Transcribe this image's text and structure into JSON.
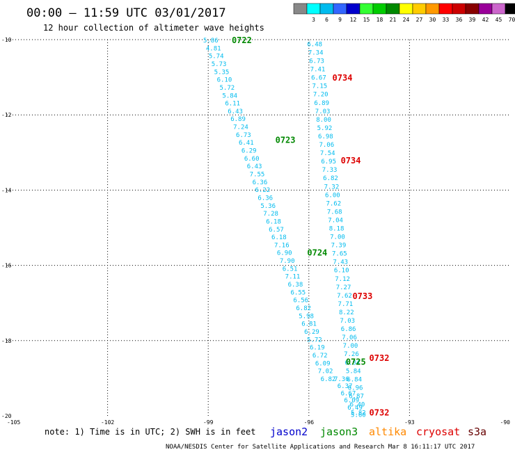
{
  "title": "00:00 – 11:59 UTC 03/01/2017",
  "subtitle": "12 hour collection of altimeter wave heights",
  "note": "note: 1) Time is in UTC; 2) SWH is in feet",
  "credit": "NOAA/NESDIS Center for Satellite Applications and Research   Mar  8 16:11:17 UTC 2017",
  "satellites": [
    {
      "name": "jason2",
      "color": "#0000cc"
    },
    {
      "name": "jason3",
      "color": "#008800"
    },
    {
      "name": "altika",
      "color": "#ff8800"
    },
    {
      "name": "cryosat",
      "color": "#dd0000"
    },
    {
      "name": "s3a",
      "color": "#660000"
    }
  ],
  "color_legend": {
    "unit": "(ft)",
    "bins": [
      {
        "label": "",
        "color": "#888888"
      },
      {
        "label": "3",
        "color": "#00ffff"
      },
      {
        "label": "6",
        "color": "#00bbee"
      },
      {
        "label": "9",
        "color": "#3366ff"
      },
      {
        "label": "12",
        "color": "#0000cc"
      },
      {
        "label": "15",
        "color": "#33ff33"
      },
      {
        "label": "18",
        "color": "#00cc00"
      },
      {
        "label": "21",
        "color": "#008800"
      },
      {
        "label": "24",
        "color": "#ffff00"
      },
      {
        "label": "27",
        "color": "#ffcc00"
      },
      {
        "label": "30",
        "color": "#ff9900"
      },
      {
        "label": "33",
        "color": "#ff0000"
      },
      {
        "label": "36",
        "color": "#cc0000"
      },
      {
        "label": "39",
        "color": "#880000"
      },
      {
        "label": "42",
        "color": "#990099"
      },
      {
        "label": "45",
        "color": "#cc66cc"
      },
      {
        "label": "70",
        "color": "#000000"
      }
    ]
  },
  "chart_data": {
    "type": "scatter",
    "title": "00:00 – 11:59 UTC 03/01/2017",
    "subtitle": "12 hour collection of altimeter wave heights",
    "xlim": [
      -105,
      -90
    ],
    "ylim": [
      -20,
      -10
    ],
    "x_ticks": [
      "-105",
      "-102",
      "-99",
      "-96",
      "-93",
      "-90"
    ],
    "y_ticks": [
      "-10",
      "-12",
      "-14",
      "-16",
      "-18",
      "-20"
    ],
    "grid": true,
    "value_color": "#00bbee",
    "tracks": [
      {
        "name": "track-a",
        "lon_start": -99.15,
        "lat_start": -10.0,
        "lon_end": -95.65,
        "lat_end": -19.0,
        "values": [
          "5.86",
          "4.81",
          "5.74",
          "5.73",
          "5.35",
          "6.10",
          "5.72",
          "5.84",
          "6.11",
          "6.43",
          "6.89",
          "7.24",
          "6.73",
          "6.41",
          "6.29",
          "6.60",
          "6.43",
          "7.55",
          "6.36",
          "6.22",
          "6.36",
          "5.36",
          "7.28",
          "6.18",
          "6.57",
          "6.18",
          "7.16",
          "6.90",
          "7.90",
          "6.51",
          "7.11",
          "6.38",
          "6.55",
          "6.56",
          "6.82",
          "5.98",
          "6.81",
          "6.29",
          "5.72",
          "6.19",
          "6.72",
          "6.09",
          "7.02",
          "6.82"
        ]
      },
      {
        "name": "track-b",
        "lon_start": -96.05,
        "lat_start": -10.1,
        "lon_end": -94.75,
        "lat_end": -19.9,
        "values": [
          "6.48",
          "7.34",
          "6.73",
          "7.41",
          "6.67",
          "7.15",
          "7.20",
          "6.89",
          "7.03",
          "8.00",
          "5.92",
          "6.98",
          "7.06",
          "7.54",
          "6.95",
          "7.33",
          "6.82",
          "7.32",
          "6.00",
          "7.62",
          "7.68",
          "7.04",
          "8.18",
          "7.00",
          "7.39",
          "7.65",
          "7.43",
          "6.10",
          "7.12",
          "7.27",
          "7.62",
          "7.71",
          "8.22",
          "7.03",
          "6.86",
          "7.06",
          "7.00",
          "7.26",
          "6.84",
          "5.84",
          "6.84",
          "6.96",
          "6.87",
          "6.40",
          "5.82"
        ]
      },
      {
        "name": "track-c",
        "lon_start": -95.25,
        "lat_start": -19.0,
        "lon_end": -94.75,
        "lat_end": -19.95,
        "values": [
          "7.36",
          "6.37",
          "6.67",
          "6.09",
          "6.49",
          "5.60"
        ]
      }
    ],
    "pass_labels": [
      {
        "text": "0722",
        "lon": -98.3,
        "lat": -10.0,
        "color": "#008800"
      },
      {
        "text": "0734",
        "lon": -95.3,
        "lat": -11.0,
        "color": "#dd0000"
      },
      {
        "text": "0723",
        "lon": -97.0,
        "lat": -12.65,
        "color": "#008800"
      },
      {
        "text": "0734",
        "lon": -95.05,
        "lat": -13.2,
        "color": "#dd0000"
      },
      {
        "text": "0724",
        "lon": -96.05,
        "lat": -15.65,
        "color": "#008800"
      },
      {
        "text": "0733",
        "lon": -94.7,
        "lat": -16.8,
        "color": "#dd0000"
      },
      {
        "text": "0732",
        "lon": -94.2,
        "lat": -18.45,
        "color": "#dd0000"
      },
      {
        "text": "0725",
        "lon": -94.9,
        "lat": -18.55,
        "color": "#008800"
      },
      {
        "text": "0732",
        "lon": -94.2,
        "lat": -19.9,
        "color": "#dd0000"
      }
    ]
  }
}
